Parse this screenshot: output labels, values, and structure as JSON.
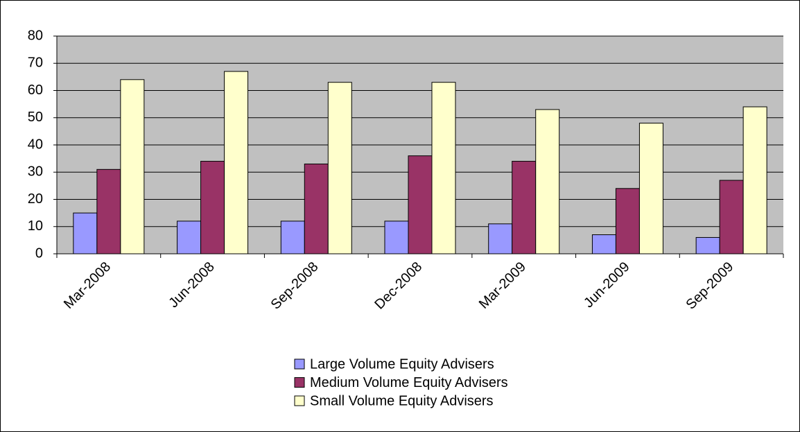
{
  "chart_data": {
    "type": "bar",
    "categories": [
      "Mar-2008",
      "Jun-2008",
      "Sep-2008",
      "Dec-2008",
      "Mar-2009",
      "Jun-2009",
      "Sep-2009"
    ],
    "series": [
      {
        "name": "Large Volume Equity Advisers",
        "color": "#9999ff",
        "values": [
          15,
          12,
          12,
          12,
          11,
          7,
          6
        ]
      },
      {
        "name": "Medium Volume Equity Advisers",
        "color": "#993366",
        "values": [
          31,
          34,
          33,
          36,
          34,
          24,
          27
        ]
      },
      {
        "name": "Small Volume Equity Advisers",
        "color": "#ffffcc",
        "values": [
          64,
          67,
          63,
          63,
          53,
          48,
          54
        ]
      }
    ],
    "ylim": [
      0,
      80
    ],
    "yticks": [
      0,
      10,
      20,
      30,
      40,
      50,
      60,
      70,
      80
    ],
    "grid": true,
    "legend": "bottom",
    "plot_background": "#c0c0c0"
  }
}
